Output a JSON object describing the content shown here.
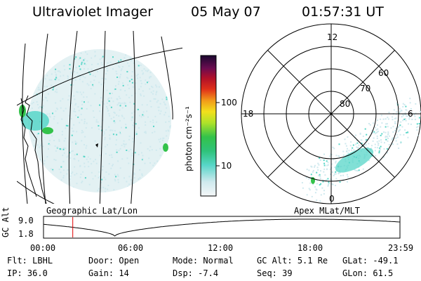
{
  "header": {
    "instrument": "Ultraviolet Imager",
    "date": "05 May 07",
    "time": "01:57:31 UT"
  },
  "left_panel": {
    "caption": "Geographic Lat/Lon"
  },
  "colorbar": {
    "unit_label": "photon cm⁻²s⁻¹",
    "ticks": [
      "100",
      "10"
    ]
  },
  "right_panel": {
    "caption": "Apex MLat/MLT",
    "mlt_labels": [
      "12",
      "18",
      "6",
      "0"
    ],
    "mlat_labels": [
      "60",
      "70",
      "80"
    ]
  },
  "altitude_strip": {
    "axis_label": "GC Alt",
    "y_ticks": [
      "9.0",
      "1.8"
    ],
    "x_ticks": [
      "00:00",
      "06:00",
      "12:00",
      "18:00",
      "23:59"
    ],
    "marker_time_fraction": 0.082
  },
  "status": {
    "row1": [
      {
        "label": "Flt:",
        "value": "LBHL"
      },
      {
        "label": "Door:",
        "value": "Open"
      },
      {
        "label": "Mode:",
        "value": "Normal"
      },
      {
        "label": "GC Alt:",
        "value": "5.1 Re"
      },
      {
        "label": "GLat:",
        "value": "-49.1"
      }
    ],
    "row2": [
      {
        "label": "IP:",
        "value": "36.0"
      },
      {
        "label": "Gain:",
        "value": "14"
      },
      {
        "label": "Dsp:",
        "value": "-7.4"
      },
      {
        "label": "Seq:",
        "value": "39"
      },
      {
        "label": "GLon:",
        "value": "61.5"
      }
    ]
  },
  "colors": {
    "emission_faint": "#cfe9ee",
    "emission_mid": "#57d6c8",
    "emission_green": "#33c24a",
    "marker": "#e00000"
  }
}
